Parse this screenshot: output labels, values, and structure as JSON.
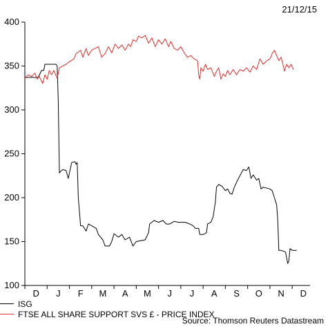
{
  "date": "21/12/15",
  "source": "Source: Thomson Reuters Datastream",
  "colors": {
    "isg": "#000000",
    "ftse": "#e03030",
    "axis": "#000000"
  },
  "chart_data": {
    "type": "line",
    "title": "",
    "xlabel": "",
    "ylabel": "",
    "ylim": [
      100,
      400
    ],
    "yticks": [
      100,
      150,
      200,
      250,
      300,
      350,
      400
    ],
    "xlim": [
      0,
      12.8
    ],
    "xtick_labels": [
      "D",
      "J",
      "F",
      "M",
      "A",
      "M",
      "J",
      "J",
      "A",
      "S",
      "O",
      "N",
      "D"
    ],
    "grid": false,
    "legend_position": "bottom-left",
    "series": [
      {
        "name": "ISG",
        "color": "#000000",
        "points": [
          [
            0.0,
            337
          ],
          [
            0.3,
            337
          ],
          [
            0.6,
            337
          ],
          [
            0.75,
            345
          ],
          [
            0.85,
            345
          ],
          [
            0.9,
            352
          ],
          [
            1.2,
            352
          ],
          [
            1.4,
            352
          ],
          [
            1.45,
            350
          ],
          [
            1.5,
            310
          ],
          [
            1.55,
            228
          ],
          [
            1.6,
            230
          ],
          [
            1.7,
            232
          ],
          [
            1.85,
            231
          ],
          [
            1.95,
            222
          ],
          [
            2.0,
            228
          ],
          [
            2.1,
            240
          ],
          [
            2.25,
            241
          ],
          [
            2.3,
            238
          ],
          [
            2.35,
            240
          ],
          [
            2.4,
            200
          ],
          [
            2.5,
            168
          ],
          [
            2.6,
            168
          ],
          [
            2.75,
            162
          ],
          [
            2.85,
            170
          ],
          [
            3.0,
            168
          ],
          [
            3.2,
            165
          ],
          [
            3.3,
            158
          ],
          [
            3.5,
            152
          ],
          [
            3.6,
            145
          ],
          [
            3.8,
            145
          ],
          [
            3.9,
            150
          ],
          [
            4.0,
            159
          ],
          [
            4.2,
            155
          ],
          [
            4.35,
            158
          ],
          [
            4.5,
            152
          ],
          [
            4.7,
            155
          ],
          [
            4.85,
            145
          ],
          [
            5.0,
            150
          ],
          [
            5.2,
            151
          ],
          [
            5.4,
            152
          ],
          [
            5.55,
            160
          ],
          [
            5.6,
            170
          ],
          [
            5.8,
            174
          ],
          [
            6.0,
            172
          ],
          [
            6.2,
            174
          ],
          [
            6.35,
            170
          ],
          [
            6.5,
            170
          ],
          [
            6.7,
            173
          ],
          [
            6.9,
            172
          ],
          [
            7.2,
            172
          ],
          [
            7.4,
            170
          ],
          [
            7.55,
            168
          ],
          [
            7.65,
            165
          ],
          [
            7.8,
            165
          ],
          [
            7.85,
            158
          ],
          [
            8.0,
            158
          ],
          [
            8.15,
            160
          ],
          [
            8.2,
            170
          ],
          [
            8.35,
            172
          ],
          [
            8.45,
            178
          ],
          [
            8.55,
            195
          ],
          [
            8.6,
            212
          ],
          [
            8.7,
            215
          ],
          [
            8.85,
            213
          ],
          [
            9.0,
            208
          ],
          [
            9.1,
            210
          ],
          [
            9.2,
            205
          ],
          [
            9.3,
            204
          ],
          [
            9.4,
            212
          ],
          [
            9.55,
            220
          ],
          [
            9.65,
            225
          ],
          [
            9.8,
            232
          ],
          [
            9.95,
            231
          ],
          [
            10.05,
            235
          ],
          [
            10.15,
            222
          ],
          [
            10.25,
            226
          ],
          [
            10.4,
            220
          ],
          [
            10.5,
            222
          ],
          [
            10.6,
            210
          ],
          [
            10.7,
            212
          ],
          [
            11.0,
            210
          ],
          [
            11.1,
            208
          ],
          [
            11.2,
            200
          ],
          [
            11.3,
            192
          ],
          [
            11.35,
            175
          ],
          [
            11.4,
            140
          ],
          [
            11.5,
            140
          ],
          [
            11.7,
            138
          ],
          [
            11.8,
            125
          ],
          [
            11.85,
            128
          ],
          [
            11.9,
            142
          ],
          [
            12.0,
            140
          ],
          [
            12.2,
            140
          ]
        ]
      },
      {
        "name": "FTSE ALL SHARE SUPPORT SVS £ - PRICE INDEX",
        "color": "#e03030",
        "points": [
          [
            0.0,
            336
          ],
          [
            0.15,
            340
          ],
          [
            0.3,
            338
          ],
          [
            0.45,
            342
          ],
          [
            0.55,
            335
          ],
          [
            0.65,
            338
          ],
          [
            0.8,
            330
          ],
          [
            0.9,
            340
          ],
          [
            1.0,
            335
          ],
          [
            1.1,
            345
          ],
          [
            1.2,
            340
          ],
          [
            1.3,
            345
          ],
          [
            1.45,
            336
          ],
          [
            1.55,
            348
          ],
          [
            1.7,
            350
          ],
          [
            1.85,
            352
          ],
          [
            2.0,
            355
          ],
          [
            2.2,
            358
          ],
          [
            2.3,
            364
          ],
          [
            2.5,
            368
          ],
          [
            2.6,
            360
          ],
          [
            2.75,
            370
          ],
          [
            2.85,
            362
          ],
          [
            3.0,
            368
          ],
          [
            3.15,
            370
          ],
          [
            3.3,
            372
          ],
          [
            3.45,
            360
          ],
          [
            3.6,
            364
          ],
          [
            3.75,
            372
          ],
          [
            3.9,
            365
          ],
          [
            4.05,
            375
          ],
          [
            4.2,
            370
          ],
          [
            4.35,
            374
          ],
          [
            4.5,
            368
          ],
          [
            4.65,
            375
          ],
          [
            4.75,
            372
          ],
          [
            4.85,
            380
          ],
          [
            5.0,
            378
          ],
          [
            5.1,
            384
          ],
          [
            5.25,
            382
          ],
          [
            5.4,
            385
          ],
          [
            5.55,
            376
          ],
          [
            5.7,
            382
          ],
          [
            5.85,
            372
          ],
          [
            6.0,
            380
          ],
          [
            6.15,
            375
          ],
          [
            6.3,
            381
          ],
          [
            6.45,
            372
          ],
          [
            6.55,
            378
          ],
          [
            6.7,
            370
          ],
          [
            6.85,
            368
          ],
          [
            7.0,
            372
          ],
          [
            7.15,
            365
          ],
          [
            7.3,
            360
          ],
          [
            7.45,
            362
          ],
          [
            7.6,
            358
          ],
          [
            7.75,
            356
          ],
          [
            7.8,
            340
          ],
          [
            7.85,
            335
          ],
          [
            7.9,
            348
          ],
          [
            8.0,
            344
          ],
          [
            8.1,
            352
          ],
          [
            8.2,
            346
          ],
          [
            8.35,
            348
          ],
          [
            8.5,
            338
          ],
          [
            8.6,
            344
          ],
          [
            8.7,
            348
          ],
          [
            8.8,
            335
          ],
          [
            8.9,
            341
          ],
          [
            9.0,
            338
          ],
          [
            9.1,
            345
          ],
          [
            9.2,
            340
          ],
          [
            9.35,
            346
          ],
          [
            9.5,
            340
          ],
          [
            9.65,
            346
          ],
          [
            9.8,
            344
          ],
          [
            9.95,
            348
          ],
          [
            10.1,
            343
          ],
          [
            10.25,
            350
          ],
          [
            10.4,
            346
          ],
          [
            10.55,
            358
          ],
          [
            10.7,
            352
          ],
          [
            10.85,
            356
          ],
          [
            11.0,
            358
          ],
          [
            11.1,
            364
          ],
          [
            11.2,
            368
          ],
          [
            11.3,
            362
          ],
          [
            11.4,
            356
          ],
          [
            11.5,
            360
          ],
          [
            11.6,
            350
          ],
          [
            11.65,
            344
          ],
          [
            11.75,
            352
          ],
          [
            11.85,
            348
          ],
          [
            11.95,
            352
          ],
          [
            12.05,
            346
          ]
        ]
      }
    ]
  }
}
